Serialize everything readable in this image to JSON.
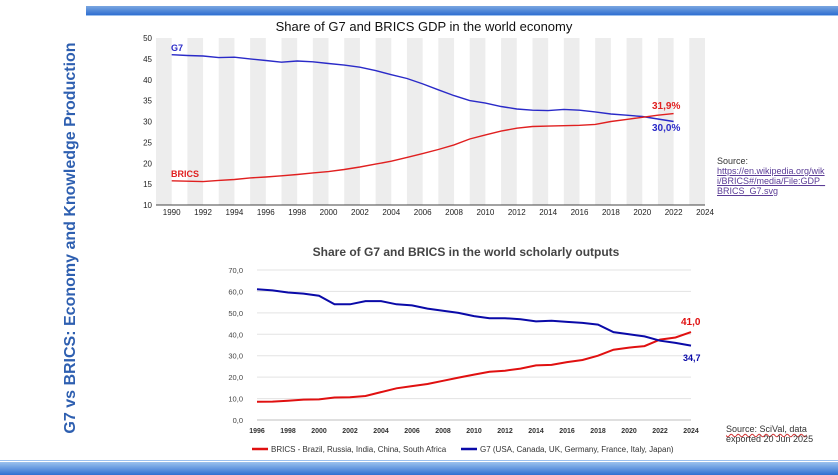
{
  "slide": {
    "side_title": "G7 vs BRICS: Economy and Knowledge Production"
  },
  "source_gdp": {
    "label": "Source:",
    "link": "https://en.wikipedia.org/wiki/BRICS#/media/File:GDP_BRICS_G7.svg"
  },
  "source_scival": {
    "line1": "Source: SciVal, data",
    "line2": "exported 20 Jun 2025"
  },
  "colors": {
    "g7": "#2a2ac8",
    "brics": "#e02020",
    "g7_chart2": "#0a0aa8",
    "brics_chart2": "#e01010"
  },
  "chart_data": [
    {
      "type": "line",
      "title": "Share of G7 and BRICS GDP in the world economy",
      "xlabel": "",
      "ylabel": "",
      "xlim": [
        1989,
        2024
      ],
      "ylim": [
        10,
        50
      ],
      "x_ticks": [
        1990,
        1992,
        1994,
        1996,
        1998,
        2000,
        2002,
        2004,
        2006,
        2008,
        2010,
        2012,
        2014,
        2016,
        2018,
        2020,
        2022,
        2024
      ],
      "y_ticks": [
        10,
        15,
        20,
        25,
        30,
        35,
        40,
        45,
        50
      ],
      "grid": "alternating vertical bands",
      "series": [
        {
          "name": "G7",
          "end_label": "30,0%",
          "x": [
            1990,
            1991,
            1992,
            1993,
            1994,
            1995,
            1996,
            1997,
            1998,
            1999,
            2000,
            2001,
            2002,
            2003,
            2004,
            2005,
            2006,
            2007,
            2008,
            2009,
            2010,
            2011,
            2012,
            2013,
            2014,
            2015,
            2016,
            2017,
            2018,
            2019,
            2020,
            2021,
            2022
          ],
          "values": [
            46,
            45.8,
            45.7,
            45.3,
            45.4,
            45.0,
            44.6,
            44.2,
            44.5,
            44.3,
            43.9,
            43.5,
            43.0,
            42.2,
            41.2,
            40.3,
            39.0,
            37.6,
            36.2,
            35.0,
            34.4,
            33.6,
            33.0,
            32.7,
            32.6,
            32.9,
            32.7,
            32.3,
            31.8,
            31.5,
            31.2,
            30.6,
            30.0
          ]
        },
        {
          "name": "BRICS",
          "end_label": "31,9%",
          "x": [
            1990,
            1991,
            1992,
            1993,
            1994,
            1995,
            1996,
            1997,
            1998,
            1999,
            2000,
            2001,
            2002,
            2003,
            2004,
            2005,
            2006,
            2007,
            2008,
            2009,
            2010,
            2011,
            2012,
            2013,
            2014,
            2015,
            2016,
            2017,
            2018,
            2019,
            2020,
            2021,
            2022
          ],
          "values": [
            15.8,
            15.7,
            15.6,
            15.9,
            16.1,
            16.5,
            16.7,
            17.0,
            17.3,
            17.7,
            18.0,
            18.5,
            19.1,
            19.8,
            20.5,
            21.4,
            22.3,
            23.3,
            24.4,
            25.8,
            26.8,
            27.7,
            28.4,
            28.8,
            28.9,
            29.0,
            29.1,
            29.3,
            30.0,
            30.5,
            31.0,
            31.5,
            31.9
          ]
        }
      ]
    },
    {
      "type": "line",
      "title": "Share of G7 and BRICS in the world scholarly outputs",
      "xlabel": "",
      "ylabel": "",
      "xlim": [
        1996,
        2024
      ],
      "ylim": [
        0,
        70
      ],
      "x_ticks": [
        1996,
        1998,
        2000,
        2002,
        2004,
        2006,
        2008,
        2010,
        2012,
        2014,
        2016,
        2018,
        2020,
        2022,
        2024
      ],
      "y_ticks": [
        "0,0",
        "10,0",
        "20,0",
        "30,0",
        "40,0",
        "50,0",
        "60,0",
        "70,0"
      ],
      "legend": "bottom",
      "series": [
        {
          "name": "BRICS - Brazil, Russia, India, China, South Africa",
          "end_label": "41,0",
          "x": [
            1996,
            1997,
            1998,
            1999,
            2000,
            2001,
            2002,
            2003,
            2004,
            2005,
            2006,
            2007,
            2008,
            2009,
            2010,
            2011,
            2012,
            2013,
            2014,
            2015,
            2016,
            2017,
            2018,
            2019,
            2020,
            2021,
            2022,
            2023,
            2024
          ],
          "values": [
            8.5,
            8.6,
            9.0,
            9.5,
            9.6,
            10.5,
            10.6,
            11.2,
            13.0,
            14.8,
            15.8,
            16.8,
            18.3,
            19.8,
            21.2,
            22.5,
            23.0,
            24.0,
            25.5,
            25.7,
            27.0,
            28.0,
            30.0,
            32.8,
            33.8,
            34.5,
            37.5,
            38.5,
            41.0
          ]
        },
        {
          "name": "G7 (USA, Canada, UK, Germany, France, Italy, Japan)",
          "end_label": "34,7",
          "x": [
            1996,
            1997,
            1998,
            1999,
            2000,
            2001,
            2002,
            2003,
            2004,
            2005,
            2006,
            2007,
            2008,
            2009,
            2010,
            2011,
            2012,
            2013,
            2014,
            2015,
            2016,
            2017,
            2018,
            2019,
            2020,
            2021,
            2022,
            2023,
            2024
          ],
          "values": [
            61.0,
            60.5,
            59.5,
            59.0,
            58.0,
            54.0,
            54.0,
            55.5,
            55.5,
            54.0,
            53.5,
            52.0,
            51.0,
            50.0,
            48.5,
            47.5,
            47.5,
            47.0,
            46.0,
            46.3,
            45.8,
            45.3,
            44.5,
            41.0,
            40.0,
            39.0,
            37.0,
            36.0,
            34.7
          ]
        }
      ]
    }
  ]
}
